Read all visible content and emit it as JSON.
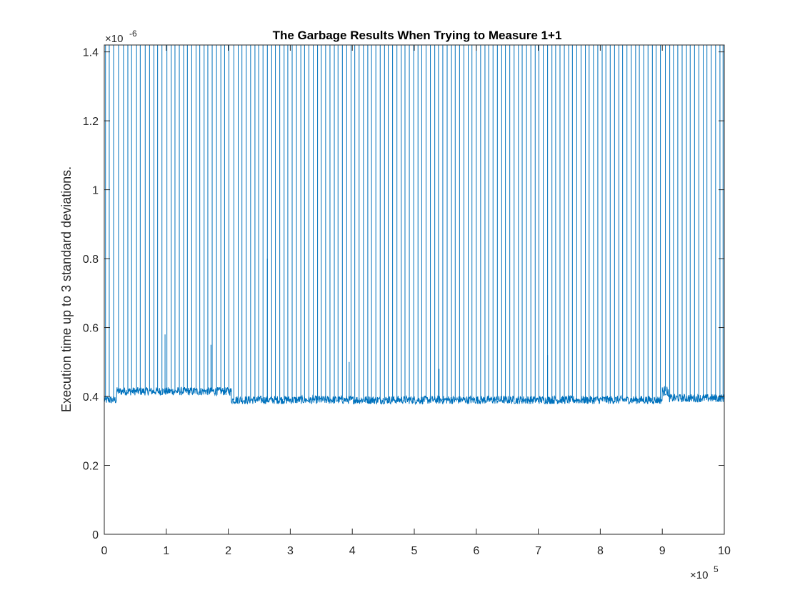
{
  "chart_data": {
    "type": "line",
    "title": "The Garbage Results When Trying to Measure 1+1",
    "xlabel": "",
    "ylabel": "Execution time up to 3 standard deviations.",
    "xlim": [
      0,
      1000000
    ],
    "ylim": [
      0,
      1.42e-06
    ],
    "x_ticks": [
      0,
      100000,
      200000,
      300000,
      400000,
      500000,
      600000,
      700000,
      800000,
      900000,
      1000000
    ],
    "x_tick_labels": [
      "0",
      "1",
      "2",
      "3",
      "4",
      "5",
      "6",
      "7",
      "8",
      "9",
      "10"
    ],
    "y_ticks": [
      0,
      2e-07,
      4e-07,
      6e-07,
      8e-07,
      1e-06,
      1.2e-06,
      1.4e-06
    ],
    "y_tick_labels": [
      "0",
      "0.2",
      "0.4",
      "0.6",
      "0.8",
      "1",
      "1.2",
      "1.4"
    ],
    "x_exponent": {
      "base": "×10",
      "power": "5"
    },
    "y_exponent": {
      "base": "×10",
      "power": "-6"
    },
    "grid": false,
    "legend": false,
    "line_color": "#0072BD",
    "series": [
      {
        "color": "#0072BD",
        "baseline_segments": [
          {
            "x_start": 0,
            "x_end": 20000,
            "y_center": 3.9e-07,
            "y_spread": 1.2e-08
          },
          {
            "x_start": 20000,
            "x_end": 205000,
            "y_center": 4.15e-07,
            "y_spread": 1.2e-08
          },
          {
            "x_start": 205000,
            "x_end": 900000,
            "y_center": 3.9e-07,
            "y_spread": 1.2e-08
          },
          {
            "x_start": 900000,
            "x_end": 910000,
            "y_center": 4.15e-07,
            "y_spread": 1.4e-08
          },
          {
            "x_start": 910000,
            "x_end": 1000000,
            "y_center": 3.95e-07,
            "y_spread": 1.2e-08
          }
        ],
        "spike_x": [
          2000,
          8000,
          15000,
          23000,
          31000,
          38000,
          44000,
          52000,
          58000,
          66000,
          73000,
          80000,
          86000,
          93000,
          101000,
          108000,
          114000,
          121000,
          128000,
          134000,
          141000,
          148000,
          154000,
          161000,
          167000,
          174000,
          181000,
          188000,
          194000,
          201000,
          209000,
          216000,
          222000,
          229000,
          236000,
          243000,
          249000,
          256000,
          263000,
          270000,
          276000,
          283000,
          290000,
          296000,
          303000,
          310000,
          317000,
          323000,
          330000,
          337000,
          344000,
          350000,
          357000,
          364000,
          371000,
          377000,
          384000,
          391000,
          398000,
          404000,
          411000,
          418000,
          425000,
          431000,
          438000,
          445000,
          452000,
          458000,
          465000,
          472000,
          479000,
          485000,
          492000,
          499000,
          506000,
          512000,
          519000,
          526000,
          533000,
          539000,
          546000,
          553000,
          560000,
          566000,
          573000,
          580000,
          587000,
          593000,
          600000,
          607000,
          614000,
          620000,
          627000,
          634000,
          641000,
          647000,
          654000,
          661000,
          668000,
          674000,
          681000,
          688000,
          695000,
          701000,
          708000,
          715000,
          722000,
          728000,
          735000,
          742000,
          749000,
          755000,
          762000,
          769000,
          776000,
          782000,
          789000,
          796000,
          803000,
          809000,
          816000,
          823000,
          830000,
          836000,
          843000,
          850000,
          857000,
          863000,
          870000,
          877000,
          884000,
          890000,
          897000,
          905000,
          912000,
          918000,
          925000,
          932000,
          939000,
          945000,
          952000,
          959000,
          966000,
          972000,
          979000,
          986000,
          993000,
          998000
        ],
        "spike_y_default": 1.42e-06,
        "short_spikes": [
          {
            "x": 98000,
            "y": 5.8e-07
          },
          {
            "x": 263000,
            "y": 8e-07
          },
          {
            "x": 395000,
            "y": 5e-07
          },
          {
            "x": 172000,
            "y": 5.5e-07
          },
          {
            "x": 715000,
            "y": 5.2e-07
          },
          {
            "x": 540000,
            "y": 4.8e-07
          }
        ]
      }
    ]
  }
}
